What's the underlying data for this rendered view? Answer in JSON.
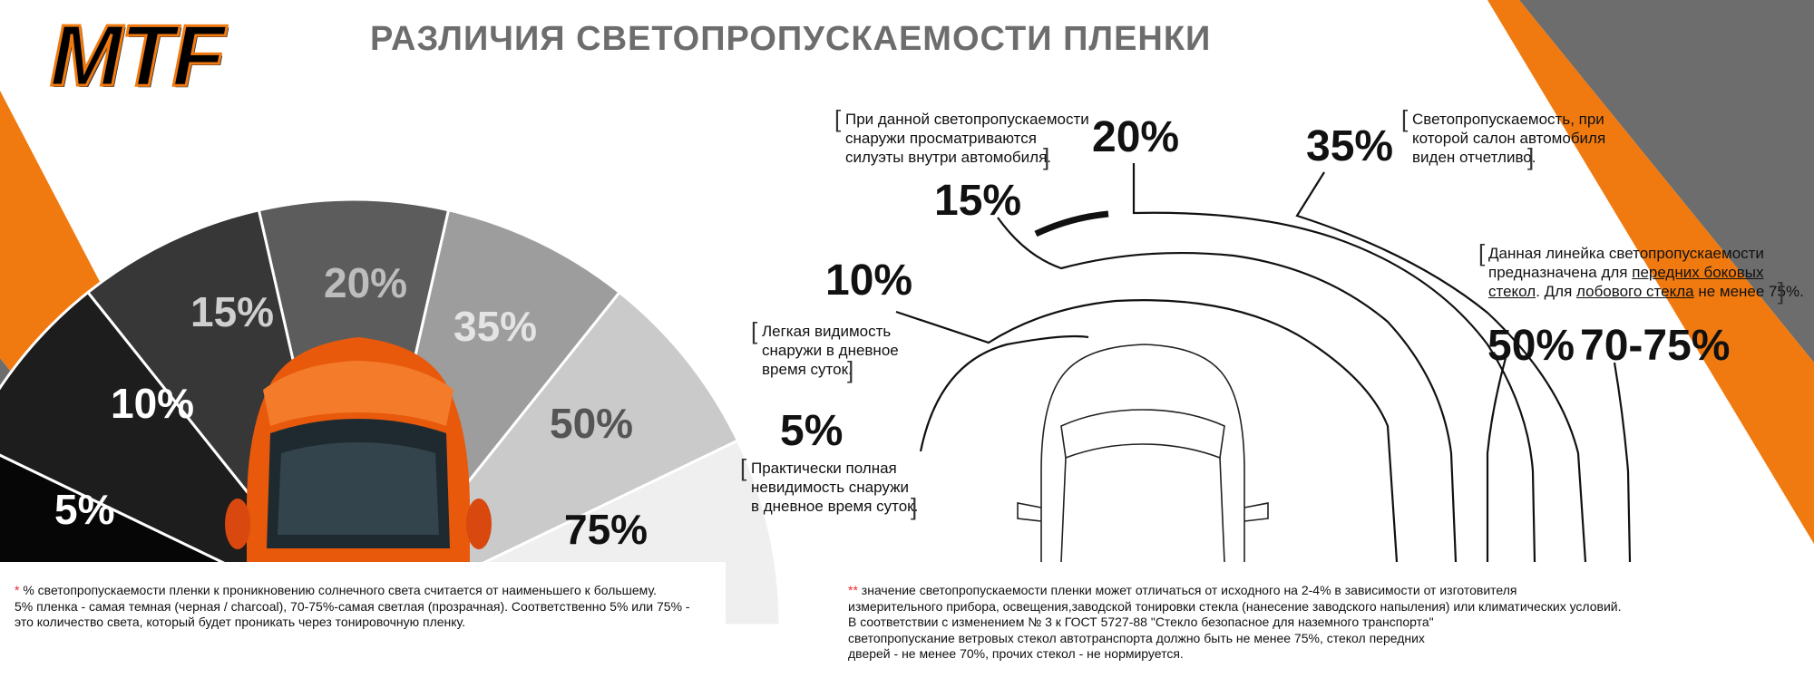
{
  "brand": {
    "logo": "MTF",
    "accent": "#f07a10",
    "dark": "#6d6d6d"
  },
  "title": "РАЗЛИЧИЯ СВЕТОПРОПУСКАЕМОСТИ ПЛЕНКИ",
  "fan": {
    "segments": [
      {
        "label": "5%",
        "color": "#060606",
        "text": "#ffffff"
      },
      {
        "label": "10%",
        "color": "#1d1d1d",
        "text": "#ffffff"
      },
      {
        "label": "15%",
        "color": "#373737",
        "text": "#cfcfcf"
      },
      {
        "label": "20%",
        "color": "#5c5c5c",
        "text": "#bdbdbd"
      },
      {
        "label": "35%",
        "color": "#9d9d9d",
        "text": "#e4e4e4"
      },
      {
        "label": "50%",
        "color": "#cacaca",
        "text": "#555555"
      },
      {
        "label": "75%",
        "color": "#efefef",
        "text": "#111111"
      }
    ]
  },
  "diagram": {
    "labels": {
      "p5": "5%",
      "p10": "10%",
      "p15": "15%",
      "p20": "20%",
      "p35": "35%",
      "p50": "50%",
      "p7075": "70-75%"
    },
    "notes": {
      "silhouettes": [
        "При данной светопропускаемости",
        "снаружи просматриваются",
        "силуэты внутри автомобиля."
      ],
      "clear": [
        "Светопропускаемость, при",
        "которой салон автомобиля",
        "виден отчетливо."
      ],
      "range": {
        "line1": "Данная линейка светопропускаемости",
        "line2a": "предназначена для ",
        "line2b": "передних боковых",
        "line3a": "стекол",
        "line3b": ". Для ",
        "line3c": "лобового стекла",
        "line3d": " не менее 75%."
      },
      "light": [
        "Легкая видимость",
        "снаружи в дневное",
        "время суток."
      ],
      "full": [
        "Практически полная",
        "невидимость снаружи",
        "в дневное время суток."
      ]
    }
  },
  "footnotes": {
    "left": {
      "mark": "*",
      "line1": " % светопропускаемости пленки к проникновению солнечного света считается от наименьшего к большему.",
      "line2": "5% пленка - самая темная (черная / charcoal), 70-75%-самая светлая (прозрачная). Соответственно 5% или 75% -",
      "line3": "это количество света, который будет проникать через тонировочную пленку."
    },
    "right": {
      "mark": "**",
      "line1": " значение светопропускаемости пленки может отличаться от исходного на 2-4% в зависимости от изготовителя",
      "line2": "измерительного прибора, освещения,заводской тонировки стекла (нанесение заводского напыления) или климатических условий.",
      "line3": "В соответствии с изменением № 3 к ГОСТ 5727-88 \"Стекло безопасное для наземного транспорта\"",
      "line4": "светопропускание ветровых стекол автотранспорта должно быть не менее 75%, стекол передних",
      "line5": "дверей - не менее 70%, прочих стекол - не нормируется."
    }
  }
}
